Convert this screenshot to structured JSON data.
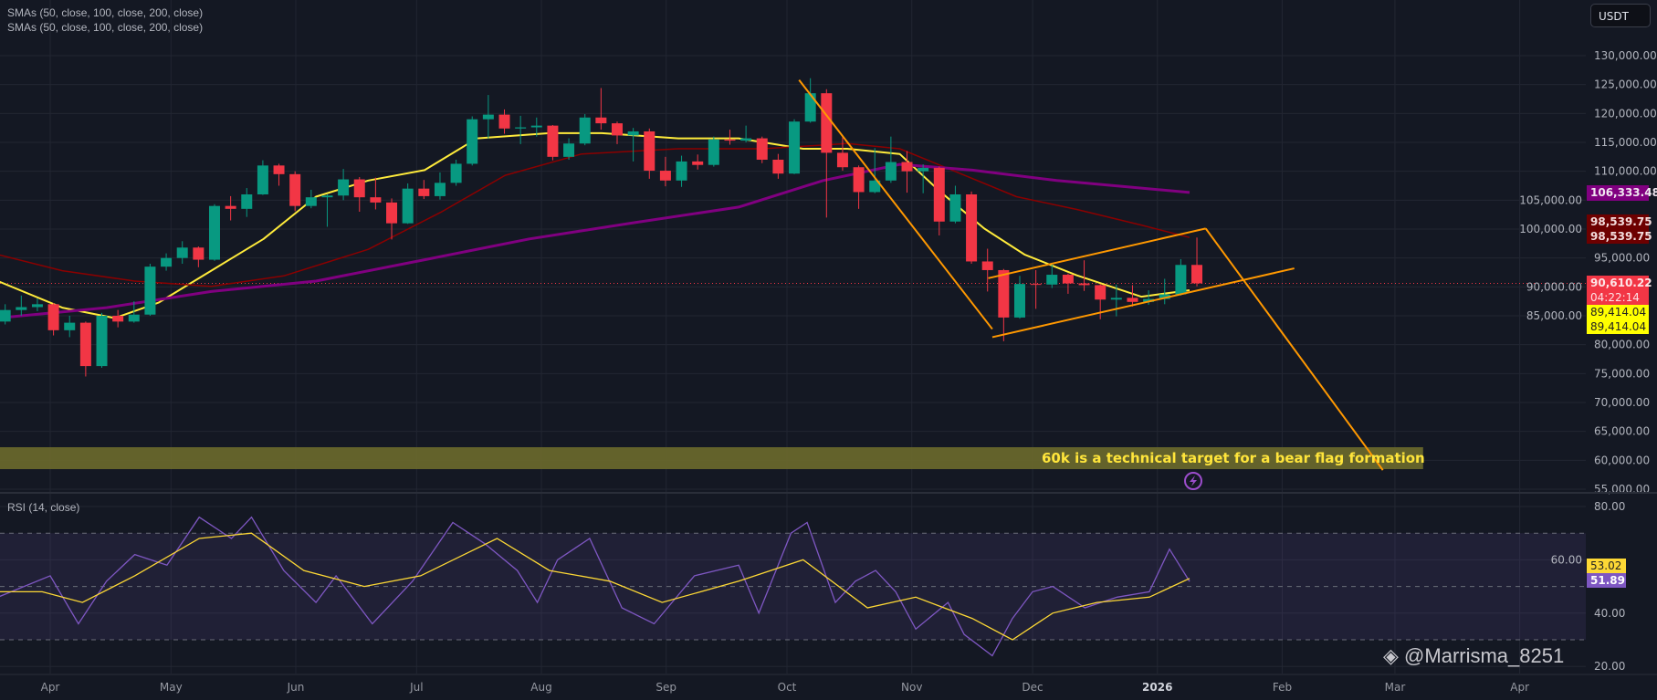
{
  "legend": {
    "indicators": [
      "SMAs (50, close, 100, close, 200, close)",
      "SMAs (50, close, 100, close, 200, close)"
    ],
    "rsi": "RSI (14, close)"
  },
  "currency_button": "USDT",
  "price_labels": {
    "sma200": "106,333.48",
    "sma100_a": "98,539.75",
    "sma100_b": "98,539.75",
    "last_price": "90,610.22",
    "countdown": "04:22:14",
    "sma50_a": "89,414.04",
    "sma50_b": "89,414.04",
    "rsi_ma": "53.02",
    "rsi": "51.89"
  },
  "annotation": {
    "text": "60k is a technical target for a bear flag formation",
    "zone_price_range": [
      58470,
      62260
    ],
    "zone_end_date": "2026-03-08"
  },
  "watermark": "@Marrisma_8251",
  "colors": {
    "background": "#141823",
    "grid": "#222632",
    "up": "#089981",
    "down": "#f23645",
    "sma50": "#ffeb3b",
    "sma100": "#8b0000",
    "sma200": "#800080",
    "trendline": "#ff9800",
    "rsi": "#7e57c2",
    "rsi_ma": "#fdd835",
    "zone": "#6b6a2c"
  },
  "chart_data": {
    "type": "candlestick",
    "title": "",
    "xlim": [
      "2025-03-19",
      "2026-04-17"
    ],
    "ylim": [
      54700,
      139600
    ],
    "x_ticks": [
      [
        "2025-04-01",
        "Apr"
      ],
      [
        "2025-05-01",
        "May"
      ],
      [
        "2025-06-01",
        "Jun"
      ],
      [
        "2025-07-01",
        "Jul"
      ],
      [
        "2025-08-01",
        "Aug"
      ],
      [
        "2025-09-01",
        "Sep"
      ],
      [
        "2025-10-01",
        "Oct"
      ],
      [
        "2025-11-01",
        "Nov"
      ],
      [
        "2025-12-01",
        "Dec"
      ],
      [
        "2026-01-01",
        "2026"
      ],
      [
        "2026-02-01",
        "Feb"
      ],
      [
        "2026-03-01",
        "Mar"
      ],
      [
        "2026-04-01",
        "Apr"
      ]
    ],
    "y_ticks": [
      130000,
      125000,
      120000,
      115000,
      110000,
      105000,
      100000,
      95000,
      90000,
      85000,
      80000,
      75000,
      70000,
      65000,
      60000,
      55000
    ],
    "y_tick_labels": [
      "130,000.00",
      "125,000.00",
      "120,000.00",
      "115,000.00",
      "110,000.00",
      "105,000.00",
      "100,000.00",
      "95,000.00",
      "90,000.00",
      "85,000.00",
      "80,000.00",
      "75,000.00",
      "70,000.00",
      "65,000.00",
      "60,000.00",
      "55,000.00"
    ],
    "grid": true,
    "last_price": 90610.22,
    "candles_ohlc": [
      [
        "2025-03-19",
        84000,
        87000,
        83500,
        86000
      ],
      [
        "2025-03-23",
        86000,
        88500,
        85000,
        86500
      ],
      [
        "2025-03-27",
        86500,
        88000,
        85800,
        87000
      ],
      [
        "2025-03-31",
        87000,
        87200,
        81600,
        82500
      ],
      [
        "2025-04-04",
        82500,
        85000,
        81300,
        83800
      ],
      [
        "2025-04-08",
        83800,
        84000,
        74500,
        76300
      ],
      [
        "2025-04-12",
        76300,
        85500,
        76000,
        85000
      ],
      [
        "2025-04-16",
        85000,
        86000,
        83000,
        84000
      ],
      [
        "2025-04-20",
        84000,
        87500,
        83800,
        85200
      ],
      [
        "2025-04-24",
        85200,
        94000,
        85000,
        93500
      ],
      [
        "2025-04-28",
        93500,
        95800,
        92800,
        95000
      ],
      [
        "2025-05-02",
        95000,
        97900,
        94000,
        96800
      ],
      [
        "2025-05-06",
        96800,
        97000,
        93400,
        94700
      ],
      [
        "2025-05-10",
        94700,
        104300,
        94500,
        104000
      ],
      [
        "2025-05-14",
        104000,
        105700,
        101500,
        103500
      ],
      [
        "2025-05-18",
        103500,
        107100,
        102100,
        106000
      ],
      [
        "2025-05-22",
        106000,
        111900,
        105900,
        111000
      ],
      [
        "2025-05-26",
        111000,
        111300,
        107500,
        109500
      ],
      [
        "2025-05-30",
        109500,
        110000,
        103100,
        104000
      ],
      [
        "2025-06-03",
        104000,
        106800,
        103600,
        105500
      ],
      [
        "2025-06-07",
        105500,
        106000,
        100400,
        105800
      ],
      [
        "2025-06-11",
        105800,
        110400,
        105000,
        108600
      ],
      [
        "2025-06-15",
        108600,
        109000,
        103000,
        105500
      ],
      [
        "2025-06-19",
        105500,
        108900,
        103400,
        104600
      ],
      [
        "2025-06-23",
        104600,
        105300,
        98200,
        101000
      ],
      [
        "2025-06-27",
        101000,
        107900,
        100900,
        107000
      ],
      [
        "2025-07-01",
        107000,
        108500,
        105200,
        105700
      ],
      [
        "2025-07-05",
        105700,
        109800,
        105100,
        108000
      ],
      [
        "2025-07-09",
        108000,
        112000,
        107500,
        111300
      ],
      [
        "2025-07-13",
        111300,
        119500,
        111000,
        119000
      ],
      [
        "2025-07-17",
        119000,
        123200,
        115700,
        119800
      ],
      [
        "2025-07-21",
        119800,
        120700,
        116500,
        117400
      ],
      [
        "2025-07-25",
        117400,
        119600,
        114700,
        117600
      ],
      [
        "2025-07-29",
        117600,
        119300,
        116000,
        117900
      ],
      [
        "2025-08-02",
        117900,
        118000,
        111900,
        112500
      ],
      [
        "2025-08-06",
        112500,
        115700,
        112000,
        114800
      ],
      [
        "2025-08-10",
        114800,
        119900,
        114500,
        119300
      ],
      [
        "2025-08-14",
        119300,
        124400,
        117200,
        118300
      ],
      [
        "2025-08-18",
        118300,
        118600,
        114700,
        116200
      ],
      [
        "2025-08-22",
        116200,
        117500,
        111700,
        116900
      ],
      [
        "2025-08-26",
        116900,
        117400,
        108700,
        110100
      ],
      [
        "2025-08-30",
        110100,
        112500,
        107400,
        108400
      ],
      [
        "2025-09-03",
        108400,
        112700,
        107300,
        111700
      ],
      [
        "2025-09-07",
        111700,
        112900,
        110300,
        111100
      ],
      [
        "2025-09-11",
        111100,
        116000,
        110800,
        115500
      ],
      [
        "2025-09-15",
        115500,
        117200,
        114600,
        115300
      ],
      [
        "2025-09-19",
        115300,
        117900,
        115000,
        115700
      ],
      [
        "2025-09-23",
        115700,
        116000,
        111400,
        112000
      ],
      [
        "2025-09-27",
        112000,
        113000,
        108700,
        109600
      ],
      [
        "2025-10-01",
        109600,
        119000,
        109500,
        118600
      ],
      [
        "2025-10-05",
        118600,
        126100,
        118400,
        123500
      ],
      [
        "2025-10-09",
        123500,
        124200,
        102000,
        113200
      ],
      [
        "2025-10-13",
        113200,
        115900,
        110100,
        110700
      ],
      [
        "2025-10-17",
        110700,
        111000,
        103500,
        106400
      ],
      [
        "2025-10-21",
        106400,
        114000,
        106200,
        108400
      ],
      [
        "2025-10-25",
        108400,
        116000,
        108000,
        111600
      ],
      [
        "2025-10-29",
        111600,
        113500,
        106300,
        110000
      ],
      [
        "2025-11-02",
        110000,
        111200,
        106200,
        110600
      ],
      [
        "2025-11-06",
        110600,
        110800,
        98900,
        101300
      ],
      [
        "2025-11-10",
        101300,
        107500,
        101000,
        106000
      ],
      [
        "2025-11-14",
        106000,
        106500,
        94000,
        94400
      ],
      [
        "2025-11-18",
        94400,
        96600,
        89200,
        92900
      ],
      [
        "2025-11-22",
        92900,
        93100,
        80600,
        84700
      ],
      [
        "2025-11-26",
        84700,
        91900,
        84500,
        90500
      ],
      [
        "2025-11-30",
        90500,
        92900,
        86200,
        90400
      ],
      [
        "2025-12-04",
        90400,
        94100,
        89800,
        92100
      ],
      [
        "2025-12-08",
        92100,
        92300,
        88800,
        90600
      ],
      [
        "2025-12-12",
        90600,
        94600,
        89300,
        90300
      ],
      [
        "2025-12-16",
        90300,
        90500,
        84400,
        87800
      ],
      [
        "2025-12-20",
        87800,
        90400,
        84900,
        88100
      ],
      [
        "2025-12-24",
        88100,
        90300,
        86600,
        87400
      ],
      [
        "2025-12-28",
        87400,
        89400,
        86900,
        87900
      ],
      [
        "2026-01-01",
        87900,
        91400,
        87000,
        88700
      ],
      [
        "2026-01-05",
        88700,
        94800,
        88500,
        93800
      ],
      [
        "2026-01-09",
        93800,
        98540,
        90100,
        90610
      ]
    ],
    "series": [
      {
        "name": "SMA 50",
        "color": "#ffeb3b",
        "points": [
          [
            "2025-03-19",
            91000
          ],
          [
            "2025-04-04",
            86400
          ],
          [
            "2025-04-17",
            84600
          ],
          [
            "2025-04-28",
            87300
          ],
          [
            "2025-05-11",
            92800
          ],
          [
            "2025-05-24",
            98300
          ],
          [
            "2025-06-06",
            105600
          ],
          [
            "2025-06-19",
            108400
          ],
          [
            "2025-07-03",
            110200
          ],
          [
            "2025-07-16",
            115700
          ],
          [
            "2025-08-03",
            116600
          ],
          [
            "2025-08-16",
            116600
          ],
          [
            "2025-09-04",
            115700
          ],
          [
            "2025-09-19",
            115700
          ],
          [
            "2025-10-05",
            113900
          ],
          [
            "2025-10-16",
            113900
          ],
          [
            "2025-10-29",
            113000
          ],
          [
            "2025-11-08",
            106500
          ],
          [
            "2025-11-19",
            100100
          ],
          [
            "2025-11-29",
            95600
          ],
          [
            "2025-12-12",
            92000
          ],
          [
            "2025-12-28",
            88300
          ],
          [
            "2026-01-09",
            89414
          ]
        ]
      },
      {
        "name": "SMA 100",
        "color": "#8b0000",
        "points": [
          [
            "2025-03-19",
            95600
          ],
          [
            "2025-04-04",
            92800
          ],
          [
            "2025-04-22",
            91000
          ],
          [
            "2025-05-11",
            90100
          ],
          [
            "2025-05-29",
            91900
          ],
          [
            "2025-06-19",
            96500
          ],
          [
            "2025-07-07",
            102900
          ],
          [
            "2025-07-23",
            109300
          ],
          [
            "2025-08-11",
            113000
          ],
          [
            "2025-09-04",
            113900
          ],
          [
            "2025-09-25",
            113900
          ],
          [
            "2025-10-16",
            114800
          ],
          [
            "2025-10-29",
            113900
          ],
          [
            "2025-11-11",
            110200
          ],
          [
            "2025-11-27",
            105600
          ],
          [
            "2025-12-12",
            103400
          ],
          [
            "2025-12-28",
            100700
          ],
          [
            "2026-01-09",
            98540
          ]
        ]
      },
      {
        "name": "SMA 200",
        "color": "#800080",
        "points": [
          [
            "2025-03-19",
            84600
          ],
          [
            "2025-04-15",
            86400
          ],
          [
            "2025-05-11",
            89200
          ],
          [
            "2025-06-06",
            91000
          ],
          [
            "2025-07-03",
            94700
          ],
          [
            "2025-07-29",
            98300
          ],
          [
            "2025-08-24",
            101100
          ],
          [
            "2025-09-19",
            103800
          ],
          [
            "2025-10-10",
            108400
          ],
          [
            "2025-10-29",
            111200
          ],
          [
            "2025-11-16",
            110200
          ],
          [
            "2025-12-07",
            108400
          ],
          [
            "2026-01-09",
            106333
          ]
        ]
      }
    ],
    "trendlines": [
      {
        "from": [
          "2025-10-04",
          125800
        ],
        "to": [
          "2025-11-21",
          82700
        ]
      },
      {
        "from": [
          "2025-11-20",
          91500
        ],
        "to": [
          "2026-01-13",
          100100
        ]
      },
      {
        "from": [
          "2025-11-21",
          81300
        ],
        "to": [
          "2026-02-04",
          93200
        ]
      },
      {
        "from": [
          "2026-01-13",
          100100
        ],
        "to": [
          "2026-02-26",
          58300
        ]
      }
    ],
    "rsi_panel": {
      "ylim": [
        15,
        85
      ],
      "y_ticks": [
        80,
        60,
        40,
        20
      ],
      "y_tick_labels": [
        "80.00",
        "60.00",
        "40.00",
        "20.00"
      ],
      "bands": [
        70,
        50,
        30
      ],
      "rsi": [
        [
          "2025-03-19",
          46
        ],
        [
          "2025-04-01",
          54
        ],
        [
          "2025-04-08",
          36
        ],
        [
          "2025-04-15",
          52
        ],
        [
          "2025-04-22",
          62
        ],
        [
          "2025-04-30",
          58
        ],
        [
          "2025-05-08",
          76
        ],
        [
          "2025-05-16",
          68
        ],
        [
          "2025-05-21",
          76
        ],
        [
          "2025-05-29",
          56
        ],
        [
          "2025-06-06",
          44
        ],
        [
          "2025-06-11",
          54
        ],
        [
          "2025-06-20",
          36
        ],
        [
          "2025-06-30",
          52
        ],
        [
          "2025-07-10",
          74
        ],
        [
          "2025-07-18",
          66
        ],
        [
          "2025-07-26",
          56
        ],
        [
          "2025-07-31",
          44
        ],
        [
          "2025-08-05",
          60
        ],
        [
          "2025-08-13",
          68
        ],
        [
          "2025-08-21",
          42
        ],
        [
          "2025-08-29",
          36
        ],
        [
          "2025-09-08",
          54
        ],
        [
          "2025-09-19",
          58
        ],
        [
          "2025-09-24",
          40
        ],
        [
          "2025-10-02",
          70
        ],
        [
          "2025-10-06",
          74
        ],
        [
          "2025-10-13",
          44
        ],
        [
          "2025-10-18",
          52
        ],
        [
          "2025-10-23",
          56
        ],
        [
          "2025-10-28",
          48
        ],
        [
          "2025-11-02",
          34
        ],
        [
          "2025-11-10",
          44
        ],
        [
          "2025-11-14",
          32
        ],
        [
          "2025-11-21",
          24
        ],
        [
          "2025-11-26",
          38
        ],
        [
          "2025-12-01",
          48
        ],
        [
          "2025-12-06",
          50
        ],
        [
          "2025-12-14",
          42
        ],
        [
          "2025-12-22",
          46
        ],
        [
          "2025-12-30",
          48
        ],
        [
          "2026-01-04",
          64
        ],
        [
          "2026-01-09",
          51.89
        ]
      ],
      "rsi_ma": [
        [
          "2025-03-19",
          48
        ],
        [
          "2025-03-30",
          48
        ],
        [
          "2025-04-09",
          44
        ],
        [
          "2025-04-22",
          54
        ],
        [
          "2025-05-08",
          68
        ],
        [
          "2025-05-21",
          70
        ],
        [
          "2025-06-03",
          56
        ],
        [
          "2025-06-18",
          50
        ],
        [
          "2025-07-02",
          54
        ],
        [
          "2025-07-21",
          68
        ],
        [
          "2025-08-03",
          56
        ],
        [
          "2025-08-18",
          52
        ],
        [
          "2025-08-31",
          44
        ],
        [
          "2025-09-19",
          52
        ],
        [
          "2025-10-05",
          60
        ],
        [
          "2025-10-21",
          42
        ],
        [
          "2025-11-02",
          46
        ],
        [
          "2025-11-16",
          38
        ],
        [
          "2025-11-26",
          30
        ],
        [
          "2025-12-06",
          40
        ],
        [
          "2025-12-17",
          44
        ],
        [
          "2025-12-30",
          46
        ],
        [
          "2026-01-09",
          53.02
        ]
      ]
    }
  }
}
